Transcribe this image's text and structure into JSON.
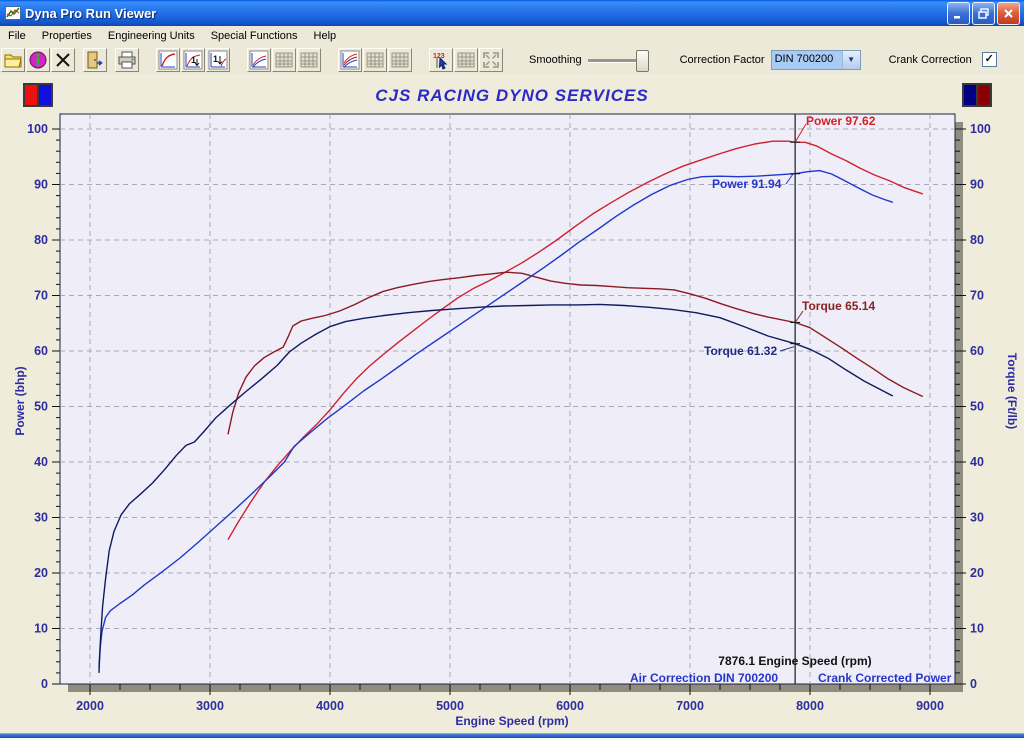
{
  "window": {
    "title": "Dyna Pro Run Viewer"
  },
  "menu": {
    "items": [
      "File",
      "Properties",
      "Engineering Units",
      "Special Functions",
      "Help"
    ]
  },
  "toolbar": {
    "smoothing_label": "Smoothing",
    "correction_factor_label": "Correction Factor",
    "correction_factor_value": "DIN 700200",
    "crank_correction_label": "Crank Correction",
    "crank_correction_checked": true,
    "checkmark": "✓",
    "combo_arrow": "▼"
  },
  "chart_data": {
    "type": "line",
    "title": "CJS RACING DYNO SERVICES",
    "xlabel": "Engine Speed (rpm)",
    "ylabel_left": "Power (bhp)",
    "ylabel_right": "Torque (Ft/lb)",
    "xlim": [
      1750,
      9210
    ],
    "ylim": [
      0,
      103
    ],
    "x_major_ticks": [
      2000,
      3000,
      4000,
      5000,
      6000,
      7000,
      8000,
      9000
    ],
    "x_minor_step": 250,
    "y_major_ticks": [
      0,
      10,
      20,
      30,
      40,
      50,
      60,
      70,
      80,
      90,
      100
    ],
    "y_minor_step": 2,
    "grid": "dashed",
    "plot_bg": "#efeef8",
    "cursor": {
      "rpm": 7876.1,
      "readout": "7876.1 Engine Speed (rpm)",
      "values": {
        "power_red": 97.62,
        "power_blue": 91.94,
        "torque_red": 65.14,
        "torque_blue": 61.32
      }
    },
    "callouts": {
      "power_red": "Power 97.62",
      "power_blue": "Power 91.94",
      "torque_red": "Torque 65.14",
      "torque_blue": "Torque 61.32"
    },
    "footer_left": "Air Correction DIN 700200",
    "footer_right": "Crank Corrected Power",
    "colors": {
      "power_red": "#cf2030",
      "power_blue": "#2038c8",
      "torque_red": "#8c1a20",
      "torque_blue": "#101a60",
      "axis_text": "#2d2da0",
      "grid": "#a8a8b8",
      "cursor": "#1a1a1a"
    },
    "series": [
      {
        "name": "power_red",
        "axis": "left",
        "color": "#cf2030",
        "points": [
          [
            3150,
            26
          ],
          [
            3230,
            29
          ],
          [
            3340,
            32.8
          ],
          [
            3450,
            36.3
          ],
          [
            3560,
            39.3
          ],
          [
            3670,
            42
          ],
          [
            3780,
            44.5
          ],
          [
            3890,
            46.8
          ],
          [
            4000,
            49.4
          ],
          [
            4110,
            52.3
          ],
          [
            4220,
            55
          ],
          [
            4330,
            57.3
          ],
          [
            4440,
            59.3
          ],
          [
            4560,
            61.4
          ],
          [
            4680,
            63.4
          ],
          [
            4800,
            65.4
          ],
          [
            4930,
            67.5
          ],
          [
            5060,
            69.5
          ],
          [
            5190,
            71.2
          ],
          [
            5320,
            72.6
          ],
          [
            5460,
            74.2
          ],
          [
            5600,
            75.9
          ],
          [
            5740,
            77.8
          ],
          [
            5890,
            80
          ],
          [
            6040,
            82.4
          ],
          [
            6190,
            84.7
          ],
          [
            6340,
            86.7
          ],
          [
            6490,
            88.6
          ],
          [
            6640,
            90.3
          ],
          [
            6790,
            91.9
          ],
          [
            6940,
            93.3
          ],
          [
            7090,
            94.4
          ],
          [
            7240,
            95.5
          ],
          [
            7390,
            96.5
          ],
          [
            7540,
            97.3
          ],
          [
            7690,
            97.8
          ],
          [
            7820,
            97.8
          ],
          [
            7876,
            97.62
          ],
          [
            7960,
            97.6
          ],
          [
            8060,
            96.9
          ],
          [
            8180,
            95.5
          ],
          [
            8300,
            94.3
          ],
          [
            8420,
            92.9
          ],
          [
            8540,
            91.7
          ],
          [
            8660,
            90.7
          ],
          [
            8780,
            89.5
          ],
          [
            8900,
            88.6
          ],
          [
            8940,
            88.3
          ]
        ]
      },
      {
        "name": "power_blue",
        "axis": "left",
        "color": "#2038c8",
        "points": [
          [
            2075,
            3
          ],
          [
            2085,
            6.5
          ],
          [
            2100,
            9.5
          ],
          [
            2130,
            12
          ],
          [
            2170,
            13.2
          ],
          [
            2250,
            14.5
          ],
          [
            2350,
            16
          ],
          [
            2450,
            17.8
          ],
          [
            2600,
            20.2
          ],
          [
            2750,
            22.7
          ],
          [
            2900,
            25.5
          ],
          [
            3050,
            28.4
          ],
          [
            3200,
            31.3
          ],
          [
            3350,
            34.3
          ],
          [
            3500,
            37.4
          ],
          [
            3620,
            40
          ],
          [
            3700,
            42.8
          ],
          [
            3830,
            45.2
          ],
          [
            3980,
            47.9
          ],
          [
            4130,
            50.3
          ],
          [
            4280,
            52.8
          ],
          [
            4430,
            55
          ],
          [
            4580,
            57.3
          ],
          [
            4730,
            59.6
          ],
          [
            4880,
            61.8
          ],
          [
            5030,
            64
          ],
          [
            5180,
            66.2
          ],
          [
            5330,
            68.4
          ],
          [
            5480,
            70.6
          ],
          [
            5630,
            72.8
          ],
          [
            5780,
            75
          ],
          [
            5930,
            77.3
          ],
          [
            6080,
            79.7
          ],
          [
            6230,
            81.9
          ],
          [
            6380,
            84.2
          ],
          [
            6530,
            86.3
          ],
          [
            6680,
            88.2
          ],
          [
            6830,
            89.8
          ],
          [
            6980,
            90.9
          ],
          [
            7100,
            91.4
          ],
          [
            7250,
            91.5
          ],
          [
            7400,
            91.4
          ],
          [
            7550,
            91.5
          ],
          [
            7700,
            91.7
          ],
          [
            7876,
            91.94
          ],
          [
            7980,
            92.3
          ],
          [
            8080,
            92.5
          ],
          [
            8180,
            91.9
          ],
          [
            8280,
            90.8
          ],
          [
            8400,
            89.4
          ],
          [
            8520,
            88.1
          ],
          [
            8620,
            87.3
          ],
          [
            8690,
            86.8
          ]
        ]
      },
      {
        "name": "torque_red",
        "axis": "right",
        "color": "#8c1a20",
        "points": [
          [
            3150,
            45
          ],
          [
            3190,
            49
          ],
          [
            3240,
            52.5
          ],
          [
            3300,
            55.3
          ],
          [
            3370,
            57.3
          ],
          [
            3450,
            58.8
          ],
          [
            3530,
            59.8
          ],
          [
            3610,
            60.7
          ],
          [
            3650,
            62.5
          ],
          [
            3690,
            64.5
          ],
          [
            3760,
            65.4
          ],
          [
            3850,
            65.9
          ],
          [
            3960,
            66.4
          ],
          [
            4080,
            67.2
          ],
          [
            4200,
            68.3
          ],
          [
            4320,
            69.6
          ],
          [
            4440,
            70.7
          ],
          [
            4560,
            71.4
          ],
          [
            4690,
            72
          ],
          [
            4820,
            72.5
          ],
          [
            4950,
            72.9
          ],
          [
            5080,
            73.2
          ],
          [
            5210,
            73.6
          ],
          [
            5340,
            73.9
          ],
          [
            5470,
            74.2
          ],
          [
            5600,
            74
          ],
          [
            5720,
            73.3
          ],
          [
            5840,
            72.6
          ],
          [
            5960,
            72.2
          ],
          [
            6090,
            71.9
          ],
          [
            6220,
            71.8
          ],
          [
            6350,
            71.6
          ],
          [
            6480,
            71.4
          ],
          [
            6610,
            71.3
          ],
          [
            6740,
            71.2
          ],
          [
            6870,
            71
          ],
          [
            7000,
            70.3
          ],
          [
            7130,
            69.5
          ],
          [
            7260,
            68.5
          ],
          [
            7390,
            67.6
          ],
          [
            7520,
            66.8
          ],
          [
            7650,
            66.1
          ],
          [
            7876,
            65.14
          ],
          [
            8000,
            64.2
          ],
          [
            8130,
            62.4
          ],
          [
            8260,
            60.6
          ],
          [
            8390,
            58.7
          ],
          [
            8520,
            56.9
          ],
          [
            8650,
            55
          ],
          [
            8780,
            53.4
          ],
          [
            8940,
            51.8
          ]
        ]
      },
      {
        "name": "torque_blue",
        "axis": "right",
        "color": "#101a60",
        "points": [
          [
            2075,
            2
          ],
          [
            2080,
            5
          ],
          [
            2090,
            9
          ],
          [
            2105,
            14
          ],
          [
            2130,
            19
          ],
          [
            2160,
            24
          ],
          [
            2200,
            27.5
          ],
          [
            2260,
            30.5
          ],
          [
            2330,
            32.5
          ],
          [
            2420,
            34.2
          ],
          [
            2520,
            36.2
          ],
          [
            2620,
            38.6
          ],
          [
            2720,
            41.2
          ],
          [
            2800,
            43
          ],
          [
            2870,
            43.6
          ],
          [
            2950,
            45.5
          ],
          [
            3050,
            48
          ],
          [
            3170,
            50.3
          ],
          [
            3300,
            52.7
          ],
          [
            3430,
            55
          ],
          [
            3560,
            57.4
          ],
          [
            3660,
            59.8
          ],
          [
            3760,
            61.4
          ],
          [
            3880,
            63
          ],
          [
            4000,
            64.4
          ],
          [
            4130,
            65.3
          ],
          [
            4280,
            65.9
          ],
          [
            4450,
            66.4
          ],
          [
            4650,
            66.9
          ],
          [
            4850,
            67.3
          ],
          [
            5050,
            67.6
          ],
          [
            5250,
            67.9
          ],
          [
            5450,
            68.1
          ],
          [
            5650,
            68.2
          ],
          [
            5850,
            68.3
          ],
          [
            6050,
            68.3
          ],
          [
            6250,
            68.4
          ],
          [
            6450,
            68.2
          ],
          [
            6650,
            67.9
          ],
          [
            6850,
            67.5
          ],
          [
            7050,
            66.9
          ],
          [
            7250,
            66
          ],
          [
            7450,
            64.4
          ],
          [
            7650,
            62.7
          ],
          [
            7876,
            61.32
          ],
          [
            8000,
            60.3
          ],
          [
            8150,
            58.7
          ],
          [
            8300,
            56.6
          ],
          [
            8450,
            54.6
          ],
          [
            8600,
            52.9
          ],
          [
            8690,
            51.9
          ]
        ]
      }
    ],
    "legend_left_colors": [
      "#ee1010",
      "#1010dd"
    ],
    "legend_right_colors": [
      "#000080",
      "#8b0000"
    ]
  }
}
